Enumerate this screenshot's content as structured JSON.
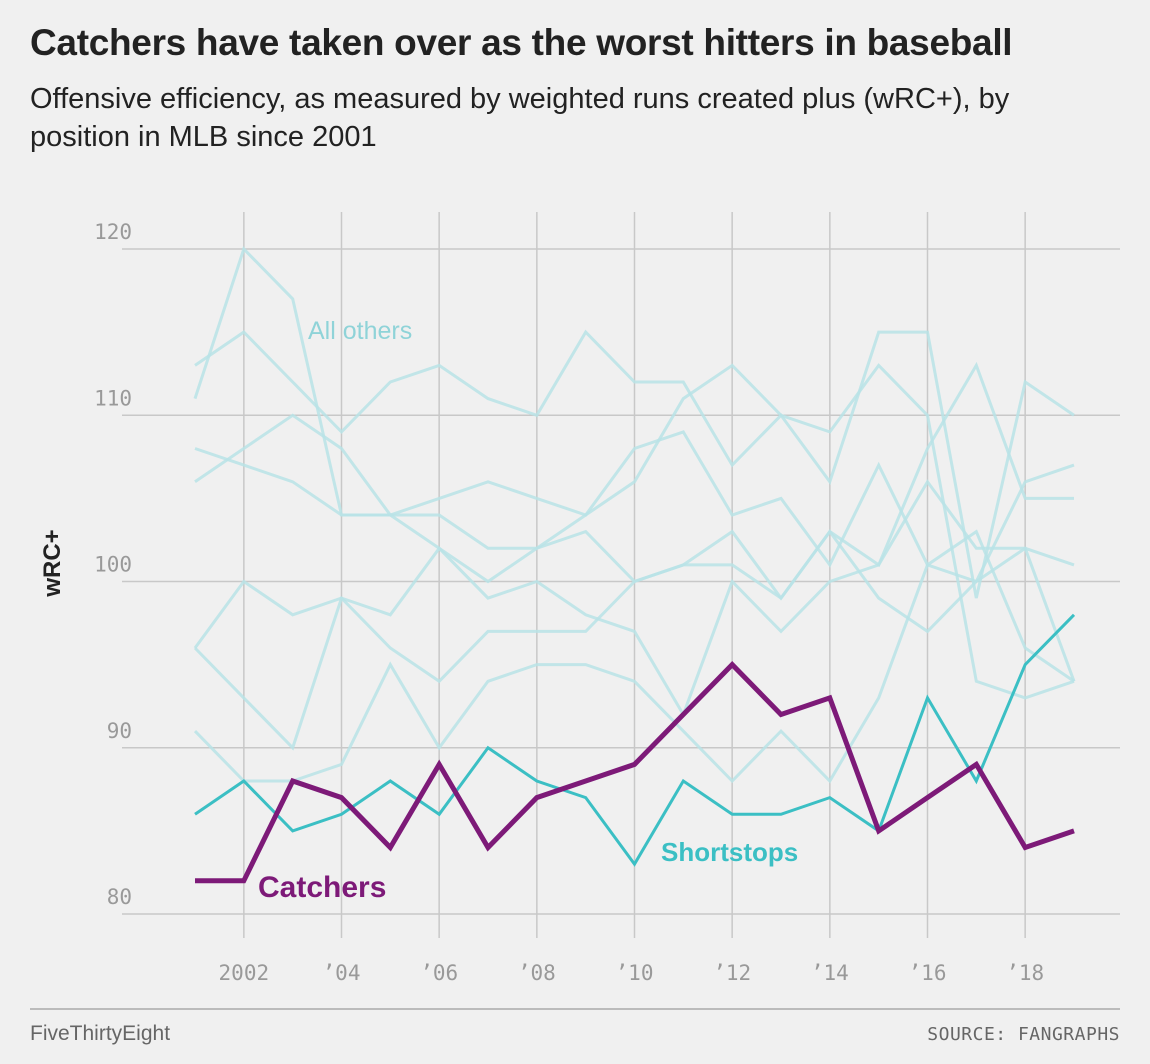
{
  "header": {
    "title": "Catchers have taken over as the worst hitters in baseball",
    "subtitle": "Offensive efficiency, as measured by weighted runs created plus (wRC+), by position in MLB since 2001"
  },
  "footer": {
    "brand": "FiveThirtyEight",
    "source": "SOURCE: FANGRAPHS"
  },
  "colors": {
    "catchers": "#7d1a78",
    "shortstops": "#3bbfc4",
    "others": "#b9e3e6",
    "others_label": "#8fd3d8",
    "grid": "#c8c8c8",
    "background": "#f0f0f0"
  },
  "chart_data": {
    "type": "line",
    "ylabel": "wRC+",
    "xlabel": "",
    "xlim": [
      2001,
      2019
    ],
    "ylim": [
      80,
      120
    ],
    "x_ticks": [
      2002,
      2004,
      2006,
      2008,
      2010,
      2012,
      2014,
      2016,
      2018
    ],
    "x_tick_labels": [
      "2002",
      "’04",
      "’06",
      "’08",
      "’10",
      "’12",
      "’14",
      "’16",
      "’18"
    ],
    "y_ticks": [
      80,
      90,
      100,
      110,
      120
    ],
    "y_tick_labels": [
      "80",
      "90",
      "100",
      "110",
      "120"
    ],
    "grid": true,
    "x": [
      2001,
      2002,
      2003,
      2004,
      2005,
      2006,
      2007,
      2008,
      2009,
      2010,
      2011,
      2012,
      2013,
      2014,
      2015,
      2016,
      2017,
      2018,
      2019
    ],
    "series": [
      {
        "name": "All others",
        "group": "others",
        "values": [
          113,
          115,
          112,
          109,
          112,
          113,
          111,
          110,
          115,
          112,
          112,
          107,
          110,
          106,
          115,
          115,
          99,
          112,
          110
        ]
      },
      {
        "name": "",
        "group": "others",
        "values": [
          111,
          120,
          117,
          104,
          104,
          104,
          102,
          102,
          103,
          100,
          101,
          101,
          99,
          103,
          101,
          108,
          113,
          105,
          105
        ]
      },
      {
        "name": "",
        "group": "others",
        "values": [
          108,
          107,
          106,
          104,
          104,
          105,
          106,
          105,
          104,
          108,
          109,
          104,
          105,
          101,
          107,
          101,
          100,
          102,
          101
        ]
      },
      {
        "name": "",
        "group": "others",
        "values": [
          106,
          108,
          110,
          108,
          104,
          102,
          99,
          100,
          98,
          97,
          92,
          100,
          97,
          100,
          101,
          106,
          102,
          102,
          94
        ]
      },
      {
        "name": "",
        "group": "others",
        "values": [
          96,
          100,
          98,
          99,
          96,
          94,
          97,
          97,
          97,
          100,
          101,
          103,
          99,
          103,
          99,
          97,
          100,
          106,
          107
        ]
      },
      {
        "name": "",
        "group": "others",
        "values": [
          96,
          93,
          90,
          99,
          98,
          102,
          100,
          102,
          104,
          106,
          111,
          113,
          110,
          109,
          113,
          110,
          94,
          93,
          94
        ]
      },
      {
        "name": "",
        "group": "others",
        "values": [
          91,
          88,
          88,
          89,
          95,
          90,
          94,
          95,
          95,
          94,
          91,
          88,
          91,
          88,
          93,
          101,
          103,
          96,
          94
        ]
      },
      {
        "name": "Shortstops",
        "group": "shortstops",
        "values": [
          86,
          88,
          85,
          86,
          88,
          86,
          90,
          88,
          87,
          83,
          88,
          86,
          86,
          87,
          85,
          93,
          88,
          95,
          98
        ]
      },
      {
        "name": "Catchers",
        "group": "catchers",
        "values": [
          82,
          82,
          88,
          87,
          84,
          89,
          84,
          87,
          88,
          89,
          92,
          95,
          92,
          93,
          85,
          87,
          89,
          84,
          85
        ]
      }
    ],
    "annotations": [
      {
        "text": "All others",
        "series": "others"
      },
      {
        "text": "Shortstops",
        "series": "shortstops"
      },
      {
        "text": "Catchers",
        "series": "catchers"
      }
    ]
  }
}
